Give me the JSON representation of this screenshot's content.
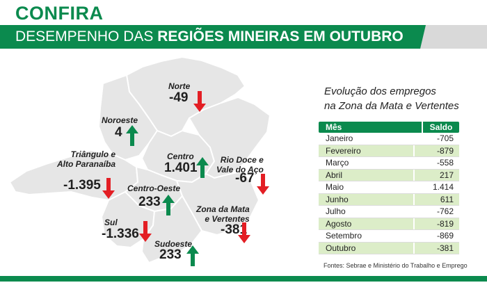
{
  "header": {
    "kicker": "CONFIRA",
    "banner_prefix": "DESEMPENHO DAS ",
    "banner_bold": "REGIÕES MINEIRAS EM OUTUBRO"
  },
  "colors": {
    "brand_green": "#0b8a4e",
    "up_green": "#0b8a4e",
    "down_red": "#e31e24",
    "map_gray": "#e6e6e6",
    "table_alt": "#dcedc8"
  },
  "map": {
    "regions": [
      {
        "name_lines": [
          "Norte"
        ],
        "value": "-49",
        "trend": "down"
      },
      {
        "name_lines": [
          "Noroeste"
        ],
        "value": "4",
        "trend": "up"
      },
      {
        "name_lines": [
          "Triângulo e",
          "Alto Paranaíba"
        ],
        "value": "-1.395",
        "trend": "down"
      },
      {
        "name_lines": [
          "Centro"
        ],
        "value": "1.401",
        "trend": "up"
      },
      {
        "name_lines": [
          "Rio Doce e",
          "Vale do Aço"
        ],
        "value": "-67",
        "trend": "down"
      },
      {
        "name_lines": [
          "Centro-Oeste"
        ],
        "value": "233",
        "trend": "up"
      },
      {
        "name_lines": [
          "Zona da Mata",
          "e Vertentes"
        ],
        "value": "-381",
        "trend": "down"
      },
      {
        "name_lines": [
          "Sul"
        ],
        "value": "-1.336",
        "trend": "down"
      },
      {
        "name_lines": [
          "Sudoeste"
        ],
        "value": "233",
        "trend": "up"
      }
    ]
  },
  "table": {
    "title_line1": "Evolução dos empregos",
    "title_line2": "na Zona da Mata e Vertentes",
    "col_month": "Mês",
    "col_balance": "Saldo",
    "rows": [
      {
        "month": "Janeiro",
        "balance": "-705"
      },
      {
        "month": "Fevereiro",
        "balance": "-879"
      },
      {
        "month": "Março",
        "balance": "-558"
      },
      {
        "month": "Abril",
        "balance": "217"
      },
      {
        "month": "Maio",
        "balance": "1.414"
      },
      {
        "month": "Junho",
        "balance": "611"
      },
      {
        "month": "Julho",
        "balance": "-762"
      },
      {
        "month": "Agosto",
        "balance": "-819"
      },
      {
        "month": "Setembro",
        "balance": "-869"
      },
      {
        "month": "Outubro",
        "balance": "-381"
      }
    ]
  },
  "source": "Fontes: Sebrae e Ministério do Trabalho e Emprego"
}
